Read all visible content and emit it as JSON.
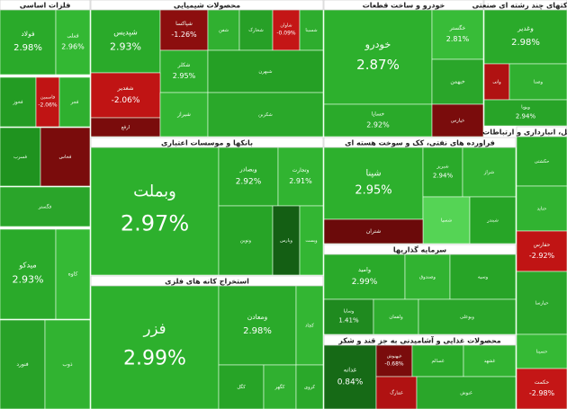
{
  "chart_data": {
    "type": "treemap",
    "sectors": [
      {
        "title": "فلزات اساسی",
        "tiles": [
          {
            "name": "فولاد",
            "change": "2.98%",
            "color": "#2aaa2a"
          },
          {
            "name": "فملی",
            "change": "2.96%",
            "color": "#33b833"
          },
          {
            "name": "فخوز",
            "color": "#239c23"
          },
          {
            "name": "فاسمین",
            "change": "-2.06%",
            "color": "#c01414"
          },
          {
            "name": "فجر",
            "color": "#2fb02f"
          },
          {
            "name": "فسرب",
            "color": "#1f931f"
          },
          {
            "name": "فخاس",
            "color": "#7a0c0c"
          },
          {
            "name": "فگستر",
            "color": "#2aa52a"
          },
          {
            "name": "میدکو",
            "change": "2.93%",
            "color": "#2aaa2a"
          },
          {
            "name": "کاوه",
            "color": "#35ba35"
          },
          {
            "name": "فنورد",
            "color": "#28a228"
          },
          {
            "name": "ذوب",
            "color": "#31b331"
          }
        ]
      },
      {
        "title": "محصولات شیمیایی",
        "tiles": [
          {
            "name": "شپدیس",
            "change": "2.93%",
            "color": "#2aaa2a"
          },
          {
            "name": "شپاکسا",
            "change": "-1.26%",
            "color": "#8c0e0e"
          },
          {
            "name": "شفن",
            "color": "#30b030"
          },
          {
            "name": "شخارک",
            "color": "#27a027"
          },
          {
            "name": "شاوان",
            "change": "-0.09%",
            "color": "#c41616"
          },
          {
            "name": "شسینا",
            "color": "#2ead2e"
          },
          {
            "name": "شکلر",
            "change": "2.95%",
            "color": "#2cae2c"
          },
          {
            "name": "شبهرن",
            "color": "#25a025"
          },
          {
            "name": "شغدیر",
            "change": "-2.06%",
            "color": "#c01414"
          },
          {
            "name": "ارفع",
            "color": "#7a0c0c"
          },
          {
            "name": "شیراز",
            "color": "#33b633"
          },
          {
            "name": "شکربن",
            "color": "#2aa82a"
          }
        ]
      },
      {
        "title": "خودرو و ساخت قطعات",
        "tiles": [
          {
            "name": "خودرو",
            "change": "2.87%",
            "color": "#2db02d"
          },
          {
            "name": "خگستر",
            "change": "2.81%",
            "color": "#38bc38"
          },
          {
            "name": "خبهمن",
            "color": "#2aa62a"
          },
          {
            "name": "خساپا",
            "change": "2.92%",
            "color": "#2aaa2a"
          },
          {
            "name": "خپارس",
            "color": "#7a0c0c"
          }
        ]
      },
      {
        "title": "شرکتهای چند رشته ای صنعتی",
        "tiles": [
          {
            "name": "وغدیر",
            "change": "2.98%",
            "color": "#2aaa2a"
          },
          {
            "name": "واتی",
            "color": "#b01212"
          },
          {
            "name": "وصنا",
            "color": "#30b030"
          },
          {
            "name": "وپویا",
            "change": "2.94%",
            "color": "#28a428"
          }
        ]
      },
      {
        "title": "بانکها و موسسات اعتباری",
        "tiles": [
          {
            "name": "وبملت",
            "change": "2.97%",
            "color": "#2db02d"
          },
          {
            "name": "وبصادر",
            "change": "2.92%",
            "color": "#2aaa2a"
          },
          {
            "name": "وتجارت",
            "change": "2.91%",
            "color": "#31b431"
          },
          {
            "name": "ونوین",
            "color": "#27a427"
          },
          {
            "name": "وپارس",
            "color": "#145f14"
          },
          {
            "name": "وپست",
            "color": "#33b633"
          }
        ]
      },
      {
        "title": "فراورده های نفتی، کک و سوخت هسته ای",
        "tiles": [
          {
            "name": "شپنا",
            "change": "2.95%",
            "color": "#2db02d"
          },
          {
            "name": "شبریز",
            "change": "2.94%",
            "color": "#2aaa2a"
          },
          {
            "name": "شراز",
            "color": "#31b331"
          },
          {
            "name": "شسپا",
            "color": "#55d455"
          },
          {
            "name": "شبندر",
            "color": "#27a527"
          },
          {
            "name": "شتران",
            "color": "#6b0a0a"
          }
        ]
      },
      {
        "title": "حمل و نقل، انبارداری و ارتباطات",
        "tiles": [
          {
            "name": "حکشتی",
            "color": "#2aaa2a"
          },
          {
            "name": "حتاید",
            "color": "#31b331"
          },
          {
            "name": "حفارس",
            "change": "-2.92%",
            "color": "#c01414"
          },
          {
            "name": "حپارسا",
            "color": "#2aa62a"
          },
          {
            "name": "حسینا",
            "color": "#35b935"
          },
          {
            "name": "حکمت",
            "change": "-2.98%",
            "color": "#c41616"
          }
        ]
      },
      {
        "title": "استخراج کانه های فلزی",
        "tiles": [
          {
            "name": "فزر",
            "change": "2.99%",
            "color": "#2db02d"
          },
          {
            "name": "ومعادن",
            "change": "2.98%",
            "color": "#2aaa2a"
          },
          {
            "name": "کچاد",
            "color": "#33b633"
          },
          {
            "name": "کگل",
            "color": "#27a427"
          },
          {
            "name": "کگهر",
            "color": "#30b030"
          },
          {
            "name": "کروی",
            "color": "#2aa82a"
          }
        ]
      },
      {
        "title": "سرمایه گذاریها",
        "tiles": [
          {
            "name": "وامید",
            "change": "2.99%",
            "color": "#2aaa2a"
          },
          {
            "name": "وصندوق",
            "color": "#31b331"
          },
          {
            "name": "وسپه",
            "color": "#27a427"
          },
          {
            "name": "وساپا",
            "change": "1.41%",
            "color": "#1f8a1f"
          },
          {
            "name": "ولقمان",
            "color": "#2ead2e"
          },
          {
            "name": "وبوعلی",
            "color": "#2aa62a"
          }
        ]
      },
      {
        "title": "محصولات غذایی و آشامیدنی به جز قند و شکر",
        "tiles": [
          {
            "name": "غدانه",
            "change": "0.84%",
            "color": "#166a16"
          },
          {
            "name": "غبهنوش",
            "change": "-0.68%",
            "color": "#7a0c0c"
          },
          {
            "name": "غسالم",
            "color": "#2aaa2a"
          },
          {
            "name": "غشهد",
            "color": "#31b331"
          },
          {
            "name": "غمارگ",
            "color": "#b01212"
          },
          {
            "name": "غنوش",
            "color": "#2aa62a"
          }
        ]
      }
    ]
  }
}
